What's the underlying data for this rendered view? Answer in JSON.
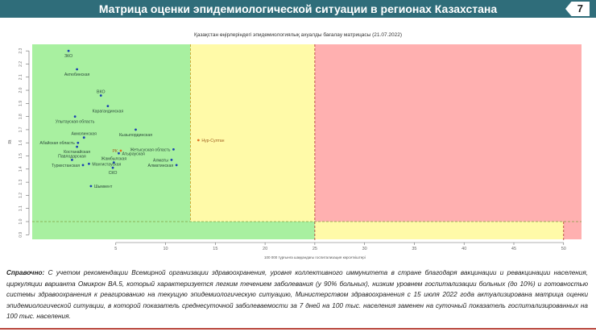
{
  "header": {
    "title": "Матрица оценки эпидемиологической ситуации в регионах Казахстана",
    "page_number": "7"
  },
  "colors": {
    "header": "#2f6d7a",
    "green": "#a8f0a0",
    "yellow": "#fffaa8",
    "red": "#ffb0b0",
    "point": "#1a3fb0",
    "point_highlight": "#e07020"
  },
  "chart_data": {
    "type": "scatter",
    "title": "Қазақстан өңірлеріндегі эпидемиологиялық ахуалды бағалау матрицасы (21.07.2022)",
    "xlabel": "100 000 тұрғынға шаққандағы госпитализация көрсеткіштері",
    "ylabel": "Rt",
    "xlim": [
      -3.4,
      51.8
    ],
    "ylim": [
      0.865,
      2.35
    ],
    "xticks": [
      5,
      10,
      15,
      20,
      25,
      30,
      35,
      40,
      45,
      50
    ],
    "yticks": [
      "2.3",
      "2.2",
      "2.1",
      "2.0",
      "1.9",
      "1.8",
      "1.7",
      "1.6",
      "1.5",
      "1.4",
      "1.3",
      "1.2",
      "1.1",
      "1.0",
      "0.9"
    ],
    "grid": false,
    "zones": [
      {
        "color": "green",
        "x": [
          -3.4,
          12.5
        ],
        "y": [
          1.0,
          2.35
        ]
      },
      {
        "color": "green",
        "x": [
          -3.4,
          25
        ],
        "y": [
          0.865,
          1.0
        ]
      },
      {
        "color": "yellow",
        "x": [
          12.5,
          25
        ],
        "y": [
          1.0,
          2.35
        ]
      },
      {
        "color": "yellow",
        "x": [
          25,
          50
        ],
        "y": [
          0.865,
          1.0
        ]
      },
      {
        "color": "red",
        "x": [
          25,
          51.8
        ],
        "y": [
          1.0,
          2.35
        ]
      },
      {
        "color": "red",
        "x": [
          50,
          51.8
        ],
        "y": [
          0.865,
          1.0
        ]
      }
    ],
    "thresholds": {
      "x": [
        12.5,
        25,
        50
      ],
      "y": [
        1.0
      ]
    },
    "points": [
      {
        "label": "ЗКО",
        "x": 0.25,
        "y": 2.3,
        "pos": "below"
      },
      {
        "label": "Актюбинская",
        "x": 1.1,
        "y": 2.16,
        "pos": "below"
      },
      {
        "label": "ВКО",
        "x": 3.5,
        "y": 1.96,
        "pos": "above"
      },
      {
        "label": "Карагандинская",
        "x": 4.2,
        "y": 1.88,
        "pos": "below"
      },
      {
        "label": "Улытауская область",
        "x": 0.9,
        "y": 1.8,
        "pos": "below"
      },
      {
        "label": "Кызылординская",
        "x": 7.0,
        "y": 1.7,
        "pos": "below"
      },
      {
        "label": "Акмолинская",
        "x": 1.8,
        "y": 1.64,
        "pos": "above"
      },
      {
        "label": "Абайская область",
        "x": 1.2,
        "y": 1.6,
        "pos": "left"
      },
      {
        "label": "Костанайская",
        "x": 1.1,
        "y": 1.57,
        "pos": "below"
      },
      {
        "label": "Жетысуская область",
        "x": 10.8,
        "y": 1.55,
        "pos": "left"
      },
      {
        "label": "РК",
        "x": 5.5,
        "y": 1.54,
        "pos": "left",
        "highlight": true
      },
      {
        "label": "Атырауская",
        "x": 5.3,
        "y": 1.52,
        "pos": "right"
      },
      {
        "label": "Павлодарская",
        "x": 0.6,
        "y": 1.47,
        "pos": "above"
      },
      {
        "label": "Алматы",
        "x": 10.6,
        "y": 1.47,
        "pos": "left"
      },
      {
        "label": "Жамбылская",
        "x": 4.8,
        "y": 1.45,
        "pos": "above"
      },
      {
        "label": "Мангистауская",
        "x": 2.3,
        "y": 1.44,
        "pos": "right"
      },
      {
        "label": "Туркестанская",
        "x": 1.7,
        "y": 1.43,
        "pos": "left"
      },
      {
        "label": "Алматинская",
        "x": 11.1,
        "y": 1.43,
        "pos": "left"
      },
      {
        "label": "СКО",
        "x": 4.7,
        "y": 1.41,
        "pos": "below"
      },
      {
        "label": "Шымкент",
        "x": 2.5,
        "y": 1.27,
        "pos": "right"
      },
      {
        "label": "Нур-Султан",
        "x": 13.3,
        "y": 1.62,
        "pos": "right",
        "highlight": true
      }
    ]
  },
  "note": {
    "bold": "Справочно:",
    "text": " С учетом рекомендации Всемирной организации здравоохранения, уровня коллективного иммунитета в стране благодаря вакцинации и ревакцинации населения, циркуляции варианта Омикрон BA.5, который характеризуется легким течением заболевания (у 90% больных), низким уровнем госпитализации больных (до 10%) и готовностью системы здравоохранения к реагированию на текущую эпидемиологическую ситуацию, Министерством здравоохранения с 15 июля 2022 года актуализирована матрица оценки эпидемиологической ситуации, в которой показатель среднесуточной заболеваемости за 7 дней на 100 тыс. населения заменен на суточный показатель госпитализированных на 100 тыс. населения."
  }
}
